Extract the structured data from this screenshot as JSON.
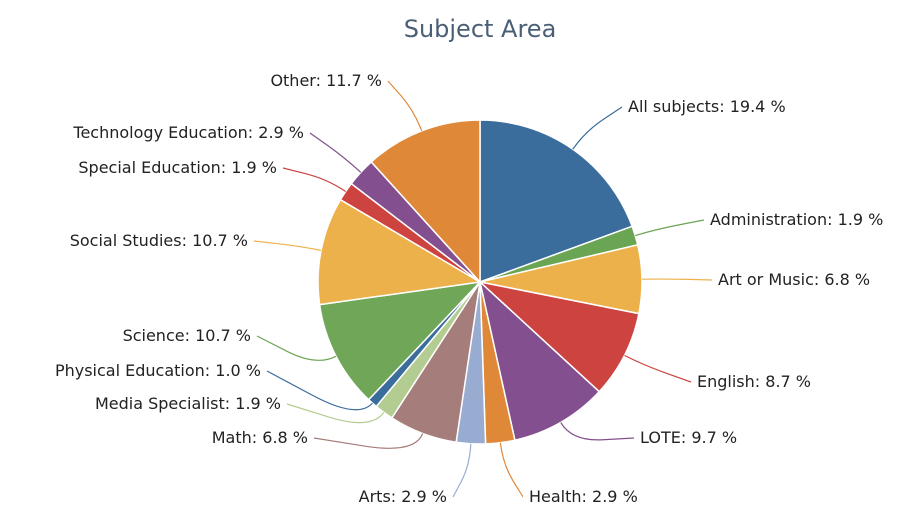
{
  "chart_data": {
    "type": "pie",
    "title": "Subject Area",
    "label_separator": ": ",
    "categories": [
      "All subjects",
      "Administration",
      "Art or Music",
      "English",
      "LOTE",
      "Health",
      "Arts",
      "Math",
      "Media Specialist",
      "Physical Education",
      "Science",
      "Social Studies",
      "Special Education",
      "Technology Education",
      "Other"
    ],
    "values": [
      19.4,
      1.9,
      6.8,
      8.7,
      9.7,
      2.9,
      2.9,
      6.8,
      1.9,
      1.0,
      10.7,
      10.7,
      1.9,
      2.9,
      11.7
    ],
    "value_labels": [
      "19.4 %",
      "1.9 %",
      "6.8 %",
      "8.7 %",
      "9.7 %",
      "2.9 %",
      "2.9 %",
      "6.8 %",
      "1.9 %",
      "1.0 %",
      "10.7 %",
      "10.7 %",
      "1.9 %",
      "2.9 %",
      "11.7 %"
    ],
    "colors": [
      "#3a6c9c",
      "#6aa553",
      "#edb14c",
      "#cc4340",
      "#844f8e",
      "#df8838",
      "#98acd2",
      "#a57d7a",
      "#b3cc92",
      "#3a6c9c",
      "#6fa657",
      "#edb14c",
      "#cc4340",
      "#844f8e",
      "#df8838"
    ]
  }
}
